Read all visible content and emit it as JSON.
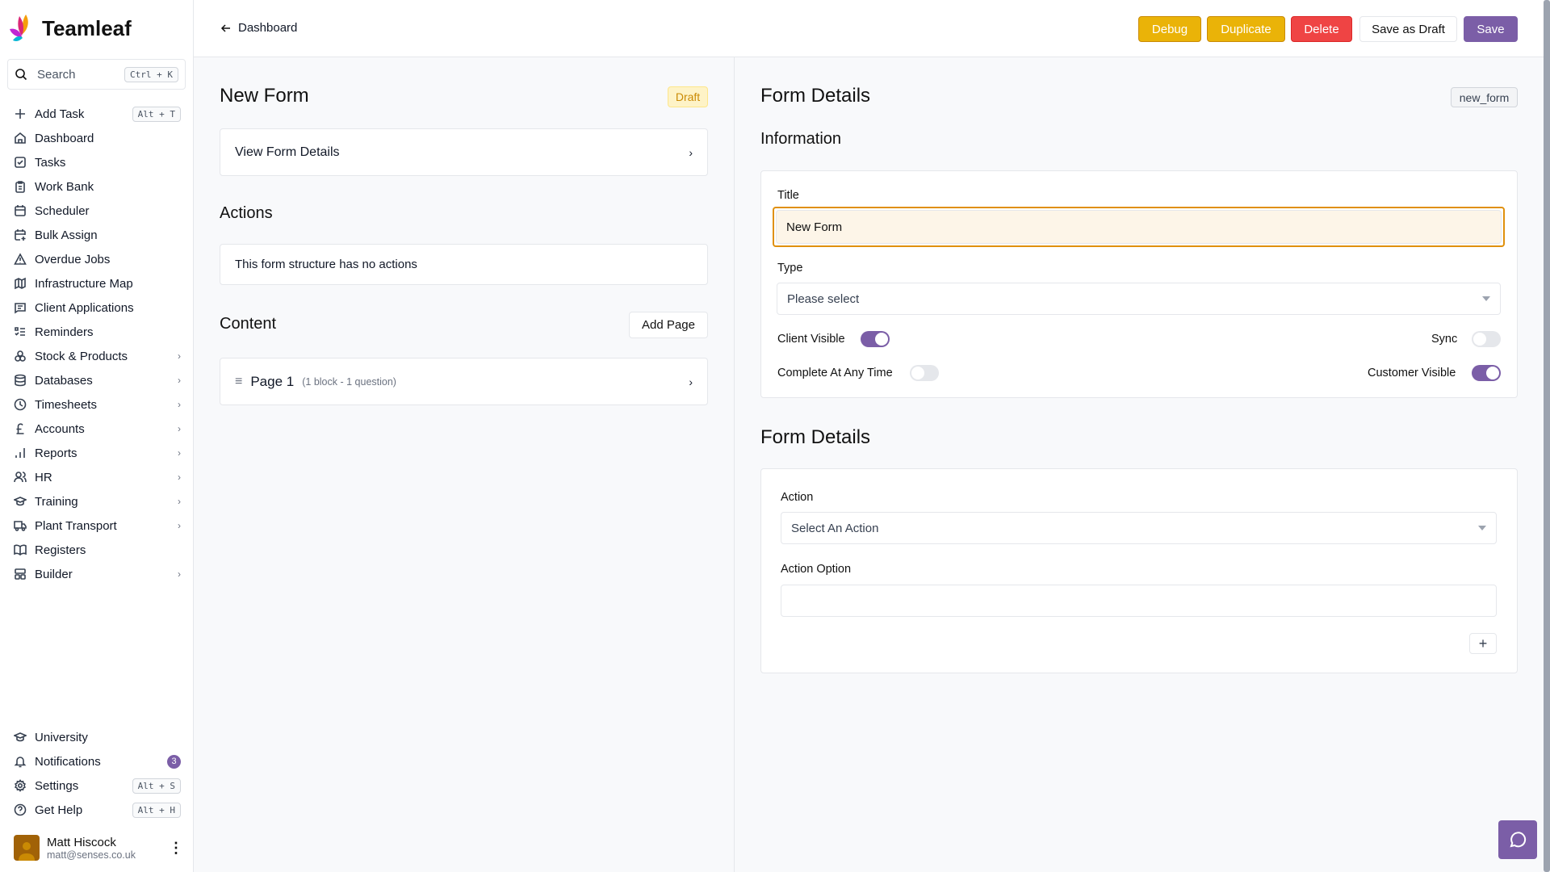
{
  "app": {
    "name": "Teamleaf"
  },
  "search": {
    "label": "Search",
    "shortcut": "Ctrl + K"
  },
  "sidebar": {
    "items": [
      {
        "label": "Add Task",
        "icon": "plus-icon",
        "shortcut": "Alt + T"
      },
      {
        "label": "Dashboard",
        "icon": "home-icon"
      },
      {
        "label": "Tasks",
        "icon": "checkbox-icon"
      },
      {
        "label": "Work Bank",
        "icon": "clipboard-icon"
      },
      {
        "label": "Scheduler",
        "icon": "calendar-icon"
      },
      {
        "label": "Bulk Assign",
        "icon": "calendar-plus-icon"
      },
      {
        "label": "Overdue Jobs",
        "icon": "warning-icon"
      },
      {
        "label": "Infrastructure Map",
        "icon": "map-icon"
      },
      {
        "label": "Client Applications",
        "icon": "message-square-icon"
      },
      {
        "label": "Reminders",
        "icon": "list-check-icon"
      },
      {
        "label": "Stock & Products",
        "icon": "boxes-icon",
        "chevron": true
      },
      {
        "label": "Databases",
        "icon": "database-icon",
        "chevron": true
      },
      {
        "label": "Timesheets",
        "icon": "clock-icon",
        "chevron": true
      },
      {
        "label": "Accounts",
        "icon": "pound-icon",
        "chevron": true
      },
      {
        "label": "Reports",
        "icon": "bar-chart-icon",
        "chevron": true
      },
      {
        "label": "HR",
        "icon": "users-icon",
        "chevron": true
      },
      {
        "label": "Training",
        "icon": "graduation-cap-icon",
        "chevron": true
      },
      {
        "label": "Plant Transport",
        "icon": "truck-icon",
        "chevron": true
      },
      {
        "label": "Registers",
        "icon": "book-icon"
      },
      {
        "label": "Builder",
        "icon": "layout-icon",
        "chevron": true
      }
    ],
    "bottom": [
      {
        "label": "University",
        "icon": "graduation-cap-icon"
      },
      {
        "label": "Notifications",
        "icon": "bell-icon",
        "badge": "3"
      },
      {
        "label": "Settings",
        "icon": "gear-icon",
        "shortcut": "Alt + S"
      },
      {
        "label": "Get Help",
        "icon": "help-circle-icon",
        "shortcut": "Alt + H"
      }
    ]
  },
  "user": {
    "name": "Matt Hiscock",
    "email": "matt@senses.co.uk"
  },
  "header": {
    "back": "Dashboard",
    "buttons": {
      "debug": "Debug",
      "duplicate": "Duplicate",
      "delete": "Delete",
      "save_draft": "Save as Draft",
      "save": "Save"
    }
  },
  "left": {
    "title": "New Form",
    "status": "Draft",
    "view_details": "View Form Details",
    "actions_heading": "Actions",
    "actions_empty": "This form structure has no actions",
    "content_heading": "Content",
    "add_page": "Add Page",
    "pages": [
      {
        "name": "Page 1",
        "meta": "(1 block - 1 question)"
      }
    ]
  },
  "right": {
    "title": "Form Details",
    "key": "new_form",
    "info_heading": "Information",
    "title_label": "Title",
    "title_value": "New Form",
    "type_label": "Type",
    "type_placeholder": "Please select",
    "toggles": {
      "client_visible": {
        "label": "Client Visible",
        "on": true
      },
      "sync": {
        "label": "Sync",
        "on": false
      },
      "complete_any_time": {
        "label": "Complete At Any Time",
        "on": false
      },
      "customer_visible": {
        "label": "Customer Visible",
        "on": true
      }
    },
    "details_heading": "Form Details",
    "action_label": "Action",
    "action_placeholder": "Select An Action",
    "action_option_label": "Action Option",
    "action_option_value": ""
  },
  "colors": {
    "accent": "#7b5ea7",
    "warning": "#eab308",
    "danger": "#ef4444",
    "focus": "#e0900c"
  }
}
